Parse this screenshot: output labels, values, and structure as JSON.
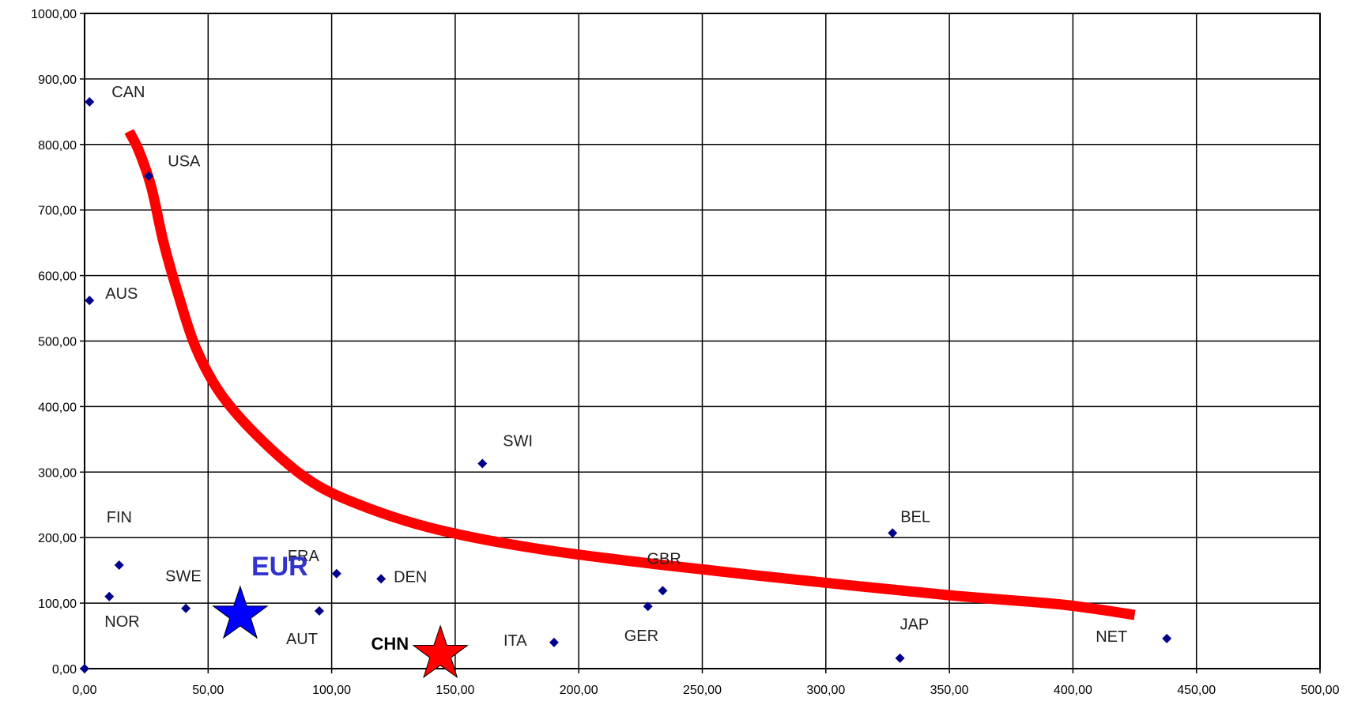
{
  "chart_data": {
    "type": "scatter",
    "title": "",
    "xlabel": "",
    "ylabel": "",
    "xlim": [
      0,
      500
    ],
    "ylim": [
      0,
      1000
    ],
    "x_ticks": [
      "0,00",
      "50,00",
      "100,00",
      "150,00",
      "200,00",
      "250,00",
      "300,00",
      "350,00",
      "400,00",
      "450,00",
      "500,00"
    ],
    "y_ticks": [
      "0,00",
      "100,00",
      "200,00",
      "300,00",
      "400,00",
      "500,00",
      "600,00",
      "700,00",
      "800,00",
      "900,00",
      "1000,00"
    ],
    "grid": true,
    "point_color": "#00008B",
    "points": [
      {
        "label": "",
        "x": 0,
        "y": 0
      },
      {
        "label": "CAN",
        "x": 2,
        "y": 865
      },
      {
        "label": "USA",
        "x": 26,
        "y": 752
      },
      {
        "label": "AUS",
        "x": 2,
        "y": 562
      },
      {
        "label": "FIN",
        "x": 14,
        "y": 158
      },
      {
        "label": "NOR",
        "x": 10,
        "y": 110
      },
      {
        "label": "SWE",
        "x": 41,
        "y": 92
      },
      {
        "label": "FRA",
        "x": 102,
        "y": 145
      },
      {
        "label": "AUT",
        "x": 95,
        "y": 88
      },
      {
        "label": "DEN",
        "x": 120,
        "y": 137
      },
      {
        "label": "SWI",
        "x": 161,
        "y": 313
      },
      {
        "label": "ITA",
        "x": 190,
        "y": 40
      },
      {
        "label": "GBR",
        "x": 234,
        "y": 119
      },
      {
        "label": "GER",
        "x": 228,
        "y": 95
      },
      {
        "label": "BEL",
        "x": 327,
        "y": 207
      },
      {
        "label": "JAP",
        "x": 330,
        "y": 16
      },
      {
        "label": "NET",
        "x": 438,
        "y": 46
      }
    ],
    "highlights": [
      {
        "label": "EUR",
        "x": 63,
        "y": 82,
        "color": "#0000FF",
        "label_color": "#3333CC"
      },
      {
        "label": "CHN",
        "x": 144,
        "y": 22,
        "color": "#FF0000",
        "label_color": "#000000"
      }
    ],
    "curve": {
      "color": "#FF0000",
      "points": [
        [
          18,
          820
        ],
        [
          22,
          790
        ],
        [
          27,
          735
        ],
        [
          32,
          650
        ],
        [
          38,
          570
        ],
        [
          45,
          490
        ],
        [
          55,
          420
        ],
        [
          70,
          355
        ],
        [
          90,
          290
        ],
        [
          110,
          252
        ],
        [
          140,
          215
        ],
        [
          180,
          185
        ],
        [
          230,
          160
        ],
        [
          290,
          135
        ],
        [
          350,
          112
        ],
        [
          395,
          98
        ],
        [
          425,
          82
        ]
      ]
    }
  }
}
